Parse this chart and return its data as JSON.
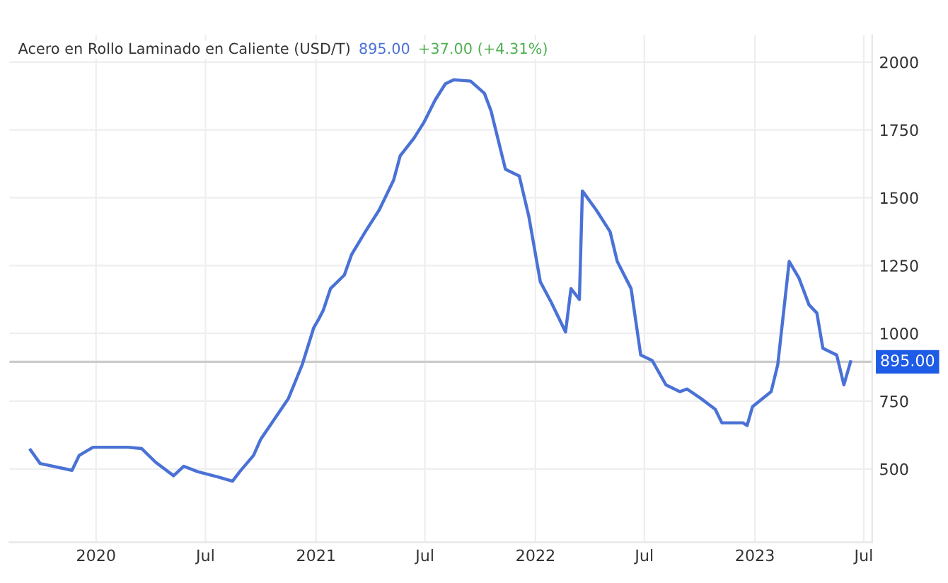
{
  "chart_data": {
    "type": "line",
    "title": "Acero en Rollo Laminado en Caliente (USD/T)",
    "annotations": [
      "895.00",
      "+37.00 (+4.31%)"
    ],
    "x": [
      "2019-09-14",
      "2019-09-30",
      "2019-11-22",
      "2019-12-04",
      "2019-12-27",
      "2020-02-23",
      "2020-03-17",
      "2020-04-09",
      "2020-05-09",
      "2020-05-26",
      "2020-06-18",
      "2020-07-23",
      "2020-08-15",
      "2020-08-27",
      "2020-09-19",
      "2020-10-01",
      "2020-10-24",
      "2020-11-16",
      "2020-12-09",
      "2020-12-28",
      "2021-01-06",
      "2021-01-13",
      "2021-01-25",
      "2021-02-17",
      "2021-03-01",
      "2021-03-24",
      "2021-04-16",
      "2021-05-10",
      "2021-05-21",
      "2021-06-13",
      "2021-06-30",
      "2021-07-18",
      "2021-08-04",
      "2021-08-18",
      "2021-09-15",
      "2021-10-08",
      "2021-10-19",
      "2021-11-12",
      "2021-12-05",
      "2021-12-21",
      "2022-01-09",
      "2022-01-27",
      "2022-02-20",
      "2022-03-01",
      "2022-03-15",
      "2022-03-20",
      "2022-04-12",
      "2022-05-05",
      "2022-05-17",
      "2022-06-09",
      "2022-06-25",
      "2022-07-14",
      "2022-08-06",
      "2022-08-29",
      "2022-09-10",
      "2022-10-03",
      "2022-10-27",
      "2022-11-07",
      "2022-12-12",
      "2022-12-19",
      "2022-12-28",
      "2023-01-28",
      "2023-02-08",
      "2023-02-27",
      "2023-03-15",
      "2023-04-01",
      "2023-04-14",
      "2023-04-24",
      "2023-05-17",
      "2023-05-29",
      "2023-06-09"
    ],
    "series": [
      {
        "color": "#4a72d6",
        "values": [
          570,
          520,
          495,
          550,
          580,
          580,
          575,
          525,
          475,
          510,
          490,
          470,
          455,
          490,
          550,
          610,
          685,
          760,
          885,
          1020,
          1055,
          1085,
          1165,
          1215,
          1290,
          1375,
          1455,
          1565,
          1655,
          1720,
          1780,
          1860,
          1920,
          1935,
          1930,
          1885,
          1820,
          1605,
          1580,
          1430,
          1190,
          1115,
          1005,
          1165,
          1125,
          1525,
          1455,
          1375,
          1265,
          1165,
          920,
          900,
          810,
          785,
          795,
          760,
          720,
          670,
          670,
          660,
          730,
          785,
          885,
          1265,
          1205,
          1105,
          1075,
          945,
          920,
          810,
          895
        ]
      }
    ],
    "xlim": [
      "2019-08-10",
      "2023-07-15"
    ],
    "xticks": [
      {
        "value": "2020-01-01",
        "label": "2020"
      },
      {
        "value": "2020-07-01",
        "label": "Jul"
      },
      {
        "value": "2021-01-01",
        "label": "2021"
      },
      {
        "value": "2021-07-01",
        "label": "Jul"
      },
      {
        "value": "2022-01-01",
        "label": "2022"
      },
      {
        "value": "2022-07-01",
        "label": "Jul"
      },
      {
        "value": "2023-01-01",
        "label": "2023"
      },
      {
        "value": "2023-07-01",
        "label": "Jul"
      }
    ],
    "ylim": [
      230,
      2100
    ],
    "yticks": [
      500,
      750,
      1000,
      1250,
      1500,
      1750,
      2000
    ],
    "ref_lines": [
      {
        "axis": "y",
        "value": 895,
        "label": "895.00",
        "color": "#cccccc"
      }
    ],
    "grid": true,
    "legend": false
  }
}
